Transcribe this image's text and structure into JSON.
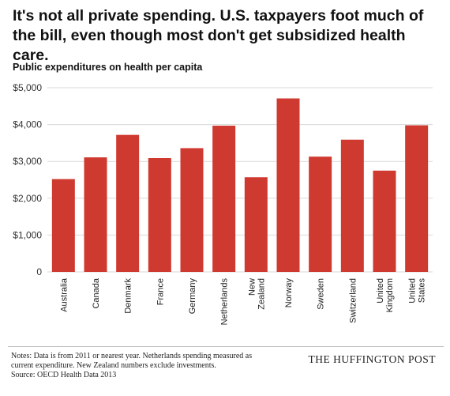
{
  "headline": {
    "title": "It's not all private spending. U.S. taxpayers foot much of the bill, even though most don't get subsidized health care."
  },
  "chart_data": {
    "type": "bar",
    "title": "",
    "subtitle": "Public expenditures on health per capita",
    "xlabel": "",
    "ylabel": "",
    "categories": [
      [
        "Australia"
      ],
      [
        "Canada"
      ],
      [
        "Denmark"
      ],
      [
        "France"
      ],
      [
        "Germany"
      ],
      [
        "Netherlands"
      ],
      [
        "New",
        "Zealand"
      ],
      [
        "Norway"
      ],
      [
        "Sweden"
      ],
      [
        "Switzerland"
      ],
      [
        "United",
        "Kingdom"
      ],
      [
        "United",
        "States"
      ]
    ],
    "values": [
      2520,
      3110,
      3720,
      3090,
      3360,
      3970,
      2570,
      4710,
      3130,
      3590,
      2750,
      3980
    ],
    "ylim": [
      0,
      5000
    ],
    "yticks": [
      0,
      1000,
      2000,
      3000,
      4000,
      5000
    ],
    "ytick_labels": [
      "0",
      "$1,000",
      "$2,000",
      "$3,000",
      "$4,000",
      "$5,000"
    ],
    "grid": true,
    "legend": "none",
    "bar_color": "#cf3a30",
    "grid_color": "#d9d9d9"
  },
  "footer": {
    "notes": [
      "Notes: Data is from 2011 or nearest year. Netherlands spending measured as",
      "current expenditure. New Zealand numbers exclude investments.",
      "Source: OECD Health Data 2013"
    ],
    "brand": "THE HUFFINGTON POST"
  }
}
